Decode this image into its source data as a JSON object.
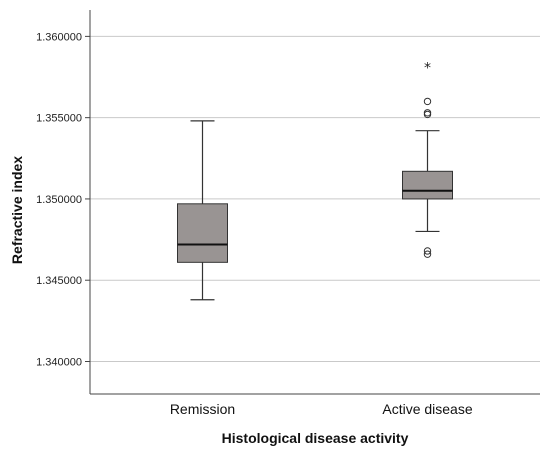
{
  "chart_data": {
    "type": "boxplot",
    "title": "",
    "xlabel": "Histological disease activity",
    "ylabel": "Refractive index",
    "ylim": [
      1.338,
      1.3615
    ],
    "yticks": [
      1.34,
      1.345,
      1.35,
      1.355,
      1.36
    ],
    "ytick_labels": [
      "1.340000",
      "1.345000",
      "1.350000",
      "1.355000",
      "1.360000"
    ],
    "grid": true,
    "box_color": "#999493",
    "categories": [
      "Remission",
      "Active disease"
    ],
    "boxes": [
      {
        "category": "Remission",
        "whisker_low": 1.3438,
        "q1": 1.3461,
        "median": 1.3472,
        "q3": 1.3497,
        "whisker_high": 1.3548,
        "outliers": [],
        "extremes": []
      },
      {
        "category": "Active disease",
        "whisker_low": 1.348,
        "q1": 1.35,
        "median": 1.3505,
        "q3": 1.3517,
        "whisker_high": 1.3542,
        "outliers": [
          1.356,
          1.3553,
          1.3552,
          1.3468,
          1.3466
        ],
        "extremes": [
          1.3581
        ]
      }
    ]
  }
}
